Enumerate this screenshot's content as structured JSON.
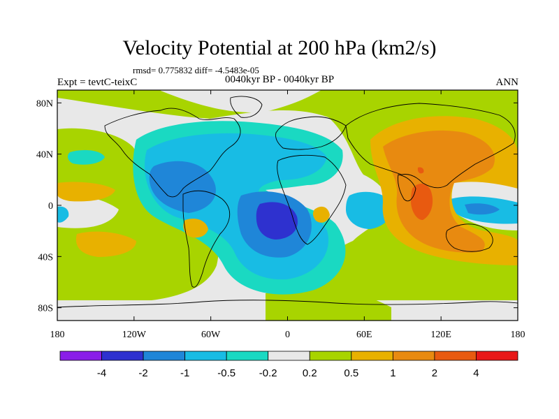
{
  "header": {
    "title": "Velocity Potential at 200 hPa (km2/s)",
    "stats": "rmsd= 0.775832 diff= -4.5483e-05",
    "left_label": "Expt = tevtC-teixC",
    "center_label": "0040kyr BP - 0040kyr BP",
    "right_label": "ANN"
  },
  "map": {
    "x_ticks": [
      "180",
      "120W",
      "60W",
      "0",
      "60E",
      "120E",
      "180"
    ],
    "y_ticks": [
      "80N",
      "40N",
      "0",
      "40S",
      "80S"
    ],
    "lon_range": [
      -180,
      180
    ],
    "lat_range": [
      -90,
      90
    ]
  },
  "colorbar": {
    "labels": [
      "-4",
      "-2",
      "-1",
      "-0.5",
      "-0.2",
      "0.2",
      "0.5",
      "1",
      "2",
      "4"
    ],
    "colors": [
      "#8a1ee8",
      "#2e31cf",
      "#1f86d8",
      "#18bce4",
      "#1ad9c2",
      "#e8e8e8",
      "#a8d400",
      "#e8b100",
      "#e88a10",
      "#e85a10",
      "#e81818"
    ]
  },
  "colors": {
    "neg_strong": "#2e31cf",
    "neg_mid": "#1f86d8",
    "neg_weak": "#18bce4",
    "neg_faint": "#1ad9c2",
    "neutral": "#e8e8e8",
    "pos_faint": "#a8d400",
    "pos_weak": "#e8b100",
    "pos_mid": "#e88a10",
    "pos_strong": "#e85a10"
  }
}
